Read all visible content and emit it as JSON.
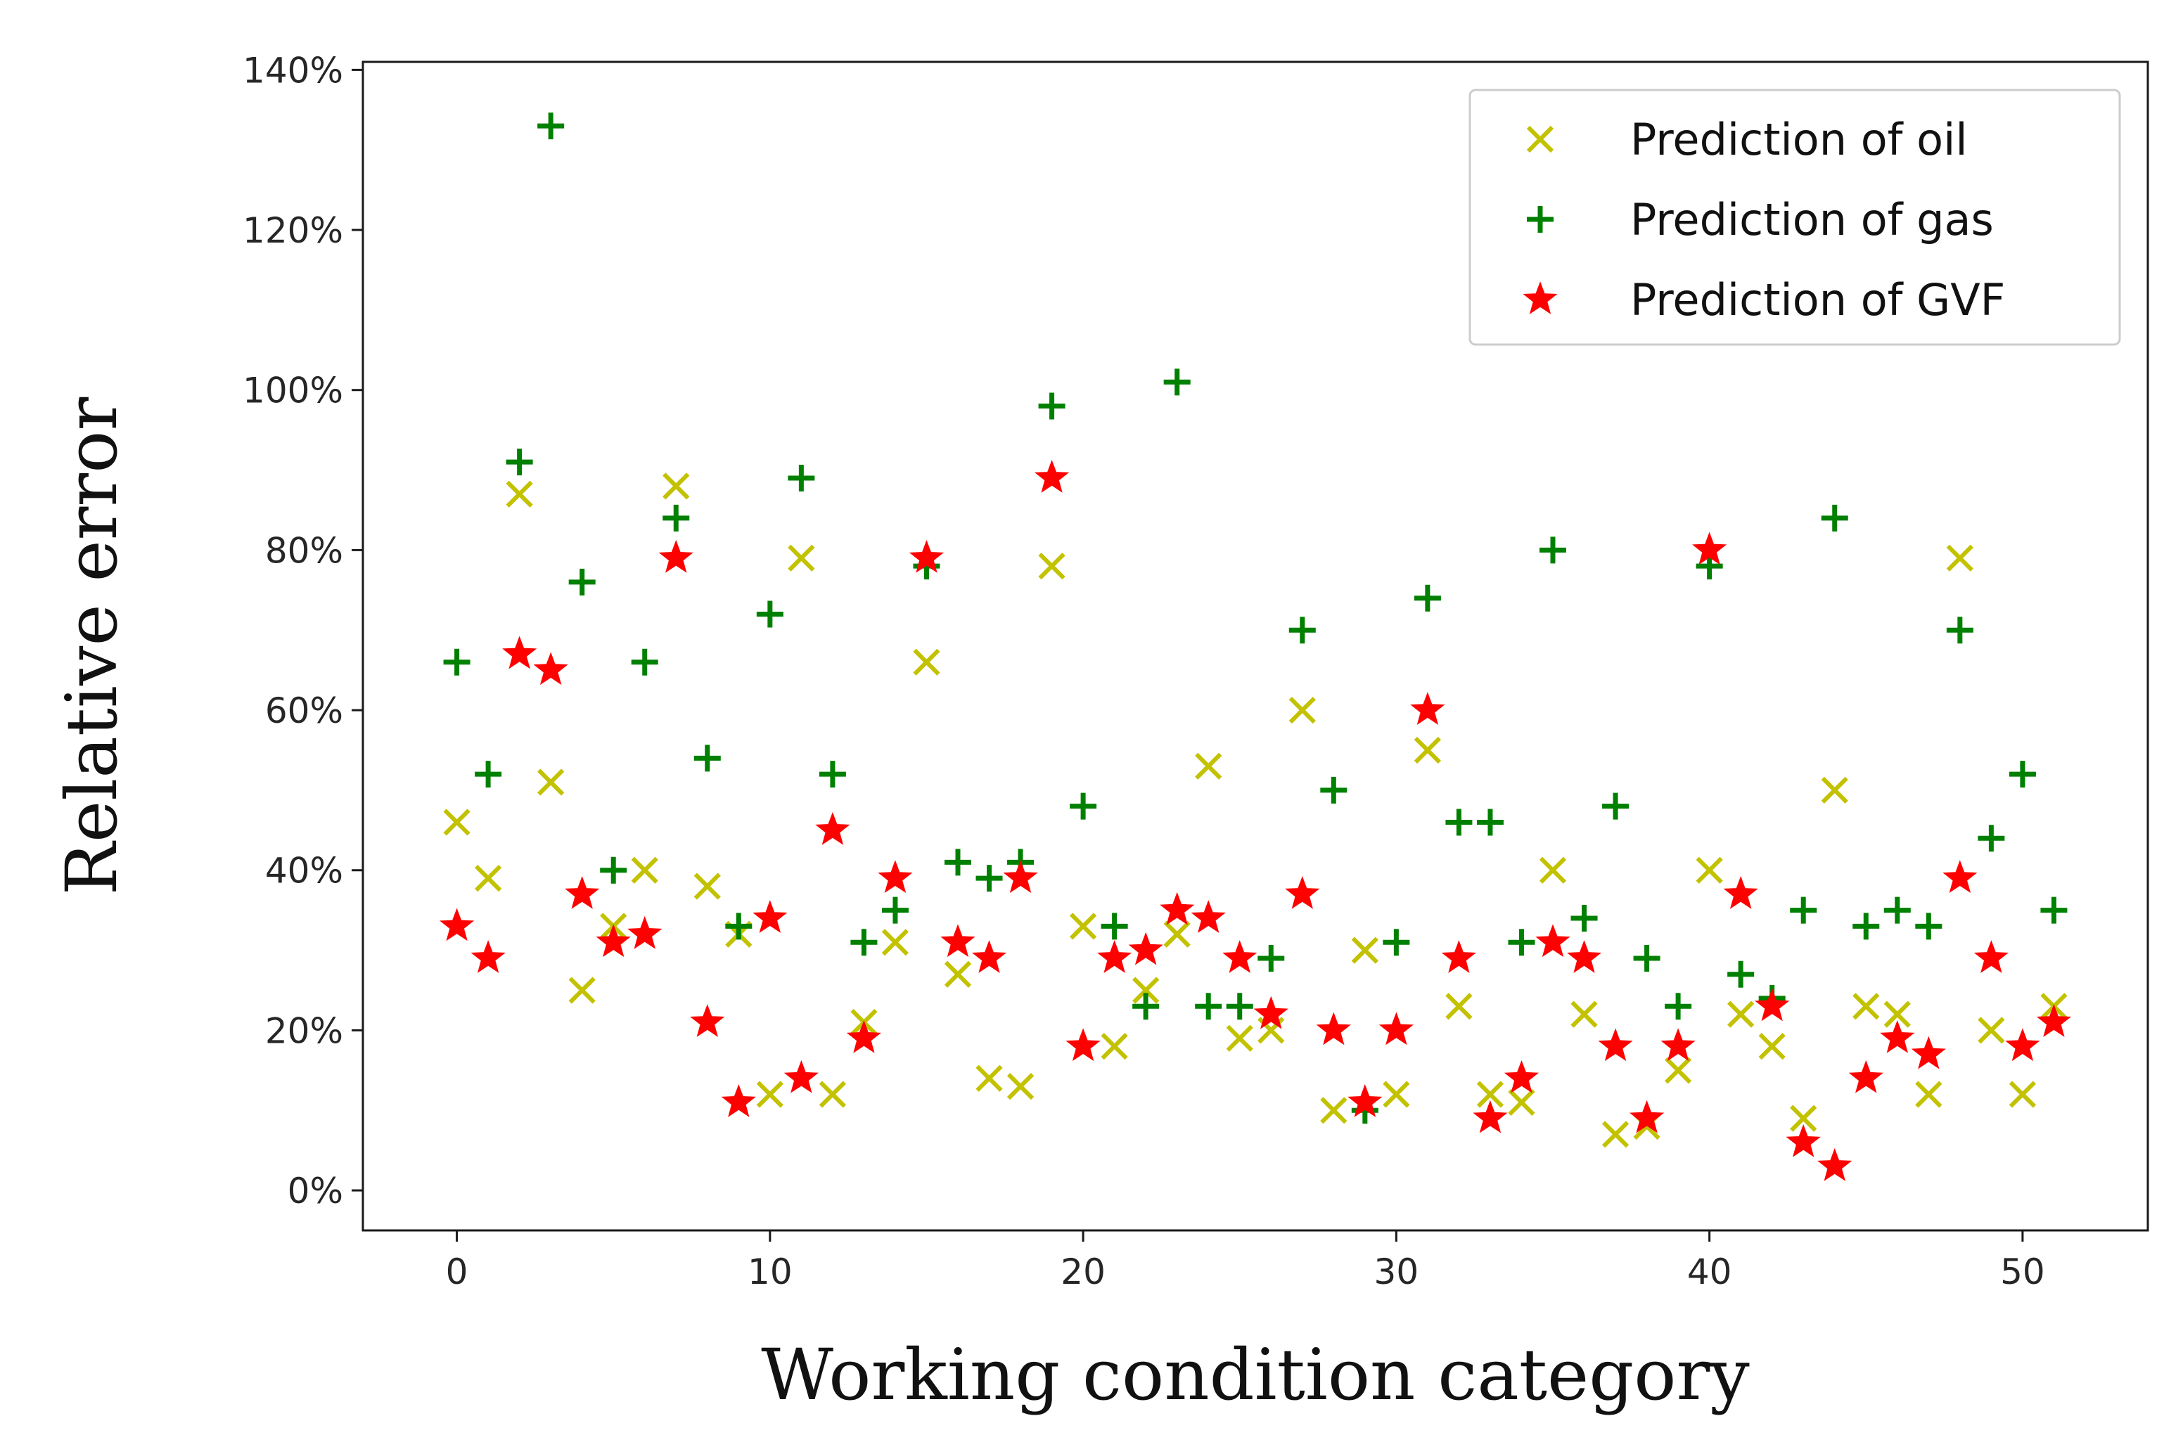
{
  "chart_data": {
    "type": "scatter",
    "title": "",
    "xlabel": "Working condition category",
    "ylabel": "Relative error",
    "xlim": [
      -3,
      54
    ],
    "ylim": [
      -5,
      141
    ],
    "xticks": [
      0,
      10,
      20,
      30,
      40,
      50
    ],
    "xtick_labels": [
      "0",
      "10",
      "20",
      "30",
      "40",
      "50"
    ],
    "yticks": [
      0,
      20,
      40,
      60,
      80,
      100,
      120,
      140
    ],
    "ytick_labels": [
      "0%",
      "20%",
      "40%",
      "60%",
      "80%",
      "100%",
      "120%",
      "140%"
    ],
    "grid": false,
    "legend_position": "top-right",
    "series": [
      {
        "name": "Prediction of oil",
        "marker": "x",
        "color": "#c2c200",
        "x": [
          0,
          1,
          2,
          3,
          4,
          5,
          6,
          7,
          8,
          9,
          10,
          11,
          12,
          13,
          14,
          15,
          16,
          17,
          18,
          19,
          20,
          21,
          22,
          23,
          24,
          25,
          26,
          27,
          28,
          29,
          30,
          31,
          32,
          33,
          34,
          35,
          36,
          37,
          38,
          39,
          40,
          41,
          42,
          43,
          44,
          45,
          46,
          47,
          48,
          49,
          50,
          51
        ],
        "y": [
          46,
          39,
          87,
          51,
          25,
          33,
          40,
          88,
          38,
          32,
          12,
          79,
          12,
          21,
          31,
          66,
          27,
          14,
          13,
          78,
          33,
          18,
          25,
          32,
          53,
          19,
          20,
          60,
          10,
          30,
          12,
          55,
          23,
          12,
          11,
          40,
          22,
          7,
          8,
          15,
          40,
          22,
          18,
          9,
          50,
          23,
          22,
          12,
          79,
          20,
          12,
          23
        ]
      },
      {
        "name": "Prediction of gas",
        "marker": "+",
        "color": "#008000",
        "x": [
          0,
          1,
          2,
          3,
          4,
          5,
          6,
          7,
          8,
          9,
          10,
          11,
          12,
          13,
          14,
          15,
          16,
          17,
          18,
          19,
          20,
          21,
          22,
          23,
          24,
          25,
          26,
          27,
          28,
          29,
          30,
          31,
          32,
          33,
          34,
          35,
          36,
          37,
          38,
          39,
          40,
          41,
          42,
          43,
          44,
          45,
          46,
          47,
          48,
          49,
          50,
          51
        ],
        "y": [
          66,
          52,
          91,
          133,
          76,
          40,
          66,
          84,
          54,
          33,
          72,
          89,
          52,
          31,
          35,
          78,
          41,
          39,
          41,
          98,
          48,
          33,
          23,
          101,
          23,
          23,
          29,
          70,
          50,
          10,
          31,
          74,
          46,
          46,
          31,
          80,
          34,
          48,
          29,
          23,
          78,
          27,
          24,
          35,
          84,
          33,
          35,
          33,
          70,
          44,
          52,
          35
        ]
      },
      {
        "name": "Prediction of GVF",
        "marker": "*",
        "color": "#ff0000",
        "x": [
          0,
          1,
          2,
          3,
          4,
          5,
          6,
          7,
          8,
          9,
          10,
          11,
          12,
          13,
          14,
          15,
          16,
          17,
          18,
          19,
          20,
          21,
          22,
          23,
          24,
          25,
          26,
          27,
          28,
          29,
          30,
          31,
          32,
          33,
          34,
          35,
          36,
          37,
          38,
          39,
          40,
          41,
          42,
          43,
          44,
          45,
          46,
          47,
          48,
          49,
          50,
          51
        ],
        "y": [
          33,
          29,
          67,
          65,
          37,
          31,
          32,
          79,
          21,
          11,
          34,
          14,
          45,
          19,
          39,
          79,
          31,
          29,
          39,
          89,
          18,
          29,
          30,
          35,
          34,
          29,
          22,
          37,
          20,
          11,
          20,
          60,
          29,
          9,
          14,
          31,
          29,
          18,
          9,
          18,
          80,
          37,
          23,
          6,
          3,
          14,
          19,
          17,
          39,
          29,
          18,
          21
        ]
      }
    ]
  }
}
